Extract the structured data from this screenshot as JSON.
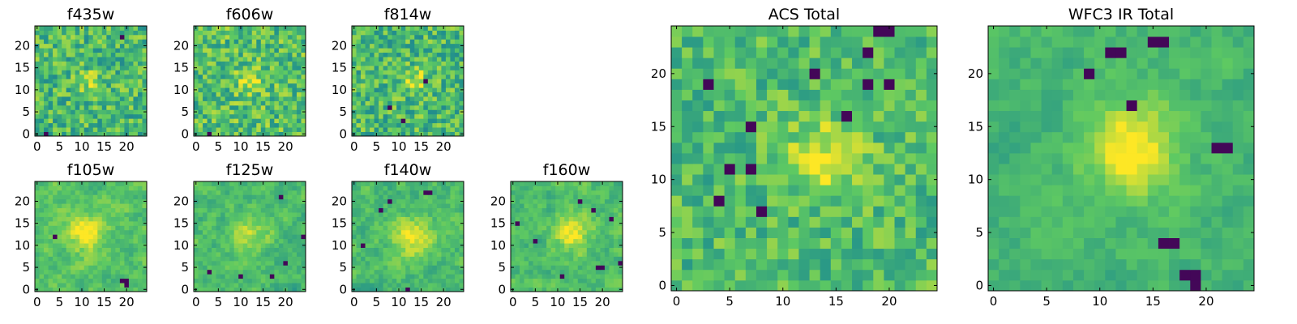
{
  "colormap": [
    "#440154",
    "#3b528b",
    "#21918c",
    "#5ec962",
    "#fde725"
  ],
  "chart_data": [
    {
      "type": "heatmap",
      "title": "f435w",
      "size": 25,
      "seed": 11,
      "smooth": 0,
      "noise": 0.9,
      "bright": 0.2,
      "blob": [
        12,
        12,
        0.3,
        2
      ],
      "dark": [
        [
          2,
          0
        ],
        [
          19,
          22
        ]
      ],
      "xticks": [
        0,
        5,
        10,
        15,
        20
      ],
      "yticks": [
        0,
        5,
        10,
        15,
        20
      ],
      "xlim": [
        0,
        24
      ],
      "ylim": [
        0,
        24
      ]
    },
    {
      "type": "heatmap",
      "title": "f606w",
      "size": 25,
      "seed": 23,
      "smooth": 0,
      "noise": 0.9,
      "bright": 0.25,
      "blob": [
        12,
        12,
        0.4,
        2
      ],
      "dark": [
        [
          3,
          0
        ]
      ],
      "xticks": [
        0,
        5,
        10,
        15,
        20
      ],
      "yticks": [
        0,
        5,
        10,
        15,
        20
      ],
      "xlim": [
        0,
        24
      ],
      "ylim": [
        0,
        24
      ]
    },
    {
      "type": "heatmap",
      "title": "f814w",
      "size": 25,
      "seed": 37,
      "smooth": 0,
      "noise": 0.9,
      "bright": 0.2,
      "blob": [
        14,
        12,
        0.4,
        2
      ],
      "dark": [
        [
          8,
          6
        ],
        [
          16,
          12
        ],
        [
          11,
          3
        ]
      ],
      "xticks": [
        0,
        5,
        10,
        15,
        20
      ],
      "yticks": [
        0,
        5,
        10,
        15,
        20
      ],
      "xlim": [
        0,
        24
      ],
      "ylim": [
        0,
        24
      ]
    },
    {
      "type": "heatmap",
      "title": "ACS Total",
      "size": 25,
      "seed": 51,
      "smooth": 0,
      "noise": 0.7,
      "bright": 0.3,
      "blob": [
        14,
        12,
        0.5,
        2.5
      ],
      "dark": [
        [
          7,
          15
        ],
        [
          5,
          11
        ],
        [
          4,
          8
        ],
        [
          8,
          7
        ],
        [
          7,
          11
        ],
        [
          18,
          19
        ],
        [
          20,
          19
        ],
        [
          16,
          16
        ],
        [
          20,
          24
        ],
        [
          19,
          24
        ],
        [
          18,
          22
        ],
        [
          13,
          20
        ],
        [
          3,
          19
        ]
      ],
      "xticks": [
        0,
        5,
        10,
        15,
        20
      ],
      "yticks": [
        0,
        5,
        10,
        15,
        20
      ],
      "xlim": [
        0,
        24
      ],
      "ylim": [
        0,
        24
      ]
    },
    {
      "type": "heatmap",
      "title": "WFC3 IR Total",
      "size": 25,
      "seed": 67,
      "smooth": 1,
      "noise": 0.6,
      "bright": 0.3,
      "blob": [
        13,
        13,
        0.6,
        3
      ],
      "dark": [
        [
          15,
          23
        ],
        [
          16,
          23
        ],
        [
          11,
          22
        ],
        [
          12,
          22
        ],
        [
          9,
          20
        ],
        [
          21,
          13
        ],
        [
          22,
          13
        ],
        [
          16,
          4
        ],
        [
          17,
          4
        ],
        [
          19,
          0
        ],
        [
          19,
          1
        ],
        [
          18,
          1
        ],
        [
          13,
          17
        ]
      ],
      "xticks": [
        0,
        5,
        10,
        15,
        20
      ],
      "yticks": [
        0,
        5,
        10,
        15,
        20
      ],
      "xlim": [
        0,
        24
      ],
      "ylim": [
        0,
        24
      ]
    },
    {
      "type": "heatmap",
      "title": "f105w",
      "size": 25,
      "seed": 71,
      "smooth": 1,
      "noise": 0.8,
      "bright": 0.3,
      "blob": [
        11,
        13,
        0.5,
        3
      ],
      "dark": [
        [
          19,
          2
        ],
        [
          20,
          1
        ],
        [
          20,
          2
        ],
        [
          4,
          12
        ]
      ],
      "xticks": [
        0,
        5,
        10,
        15,
        20
      ],
      "yticks": [
        0,
        5,
        10,
        15,
        20
      ],
      "xlim": [
        0,
        24
      ],
      "ylim": [
        0,
        24
      ]
    },
    {
      "type": "heatmap",
      "title": "f125w",
      "size": 25,
      "seed": 83,
      "smooth": 1,
      "noise": 0.8,
      "bright": 0.25,
      "blob": [
        12,
        12,
        0.4,
        3
      ],
      "dark": [
        [
          19,
          21
        ],
        [
          3,
          4
        ],
        [
          20,
          6
        ],
        [
          24,
          12
        ],
        [
          10,
          3
        ],
        [
          17,
          3
        ]
      ],
      "xticks": [
        0,
        5,
        10,
        15,
        20
      ],
      "yticks": [
        0,
        5,
        10,
        15,
        20
      ],
      "xlim": [
        0,
        24
      ],
      "ylim": [
        0,
        24
      ]
    },
    {
      "type": "heatmap",
      "title": "f140w",
      "size": 25,
      "seed": 97,
      "smooth": 1,
      "noise": 0.8,
      "bright": 0.25,
      "blob": [
        13,
        12,
        0.5,
        3
      ],
      "dark": [
        [
          16,
          22
        ],
        [
          17,
          22
        ],
        [
          8,
          20
        ],
        [
          12,
          0
        ],
        [
          6,
          18
        ],
        [
          2,
          10
        ]
      ],
      "xticks": [
        0,
        5,
        10,
        15,
        20
      ],
      "yticks": [
        0,
        5,
        10,
        15,
        20
      ],
      "xlim": [
        0,
        24
      ],
      "ylim": [
        0,
        24
      ]
    },
    {
      "type": "heatmap",
      "title": "f160w",
      "size": 25,
      "seed": 103,
      "smooth": 1,
      "noise": 0.8,
      "bright": 0.25,
      "blob": [
        13,
        13,
        0.5,
        3
      ],
      "dark": [
        [
          15,
          20
        ],
        [
          18,
          18
        ],
        [
          5,
          11
        ],
        [
          19,
          5
        ],
        [
          20,
          5
        ],
        [
          24,
          6
        ],
        [
          22,
          16
        ],
        [
          11,
          3
        ],
        [
          1,
          15
        ]
      ],
      "xticks": [
        0,
        5,
        10,
        15,
        20
      ],
      "yticks": [
        0,
        5,
        10,
        15,
        20
      ],
      "xlim": [
        0,
        24
      ],
      "ylim": [
        0,
        24
      ]
    }
  ]
}
